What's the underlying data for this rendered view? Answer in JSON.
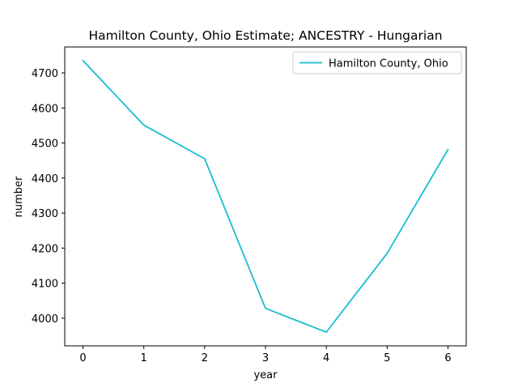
{
  "chart_data": {
    "type": "line",
    "title": "Hamilton County, Ohio Estimate; ANCESTRY - Hungarian",
    "xlabel": "year",
    "ylabel": "number",
    "x": [
      0,
      1,
      2,
      3,
      4,
      5,
      6
    ],
    "series": [
      {
        "name": "Hamilton County, Ohio",
        "color": "#17becf",
        "values": [
          4735,
          4551,
          4455,
          4028,
          3960,
          4185,
          4481
        ]
      }
    ],
    "xlim": [
      -0.3,
      6.3
    ],
    "ylim": [
      3921,
      4774
    ],
    "xticks": [
      0,
      1,
      2,
      3,
      4,
      5,
      6
    ],
    "yticks": [
      4000,
      4100,
      4200,
      4300,
      4400,
      4500,
      4600,
      4700
    ],
    "grid": false,
    "legend_position": "top-right"
  }
}
